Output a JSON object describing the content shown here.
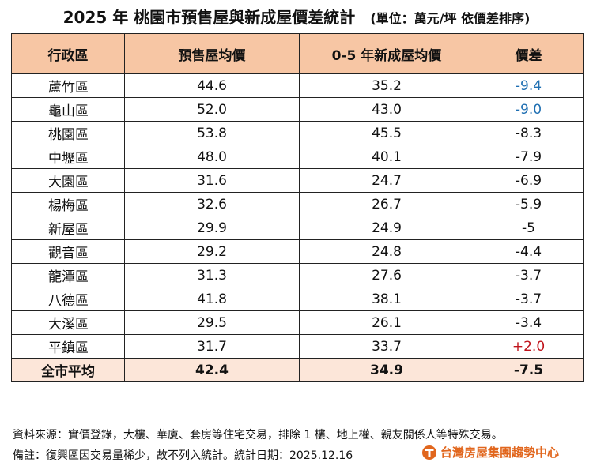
{
  "title": "2025 年 桃園市預售屋與新成屋價差統計",
  "subtitle": "(單位：萬元/坪 依價差排序)",
  "columns": [
    "行政區",
    "預售屋均價",
    "0-5 年新成屋均價",
    "價差"
  ],
  "rows": [
    {
      "district": "蘆竹區",
      "presale": "44.6",
      "new": "35.2",
      "diff": "-9.4",
      "style": "neg-blue"
    },
    {
      "district": "龜山區",
      "presale": "52.0",
      "new": "43.0",
      "diff": "-9.0",
      "style": "neg-blue"
    },
    {
      "district": "桃園區",
      "presale": "53.8",
      "new": "45.5",
      "diff": "-8.3",
      "style": ""
    },
    {
      "district": "中壢區",
      "presale": "48.0",
      "new": "40.1",
      "diff": "-7.9",
      "style": ""
    },
    {
      "district": "大園區",
      "presale": "31.6",
      "new": "24.7",
      "diff": "-6.9",
      "style": ""
    },
    {
      "district": "楊梅區",
      "presale": "32.6",
      "new": "26.7",
      "diff": "-5.9",
      "style": ""
    },
    {
      "district": "新屋區",
      "presale": "29.9",
      "new": "24.9",
      "diff": "-5",
      "style": ""
    },
    {
      "district": "觀音區",
      "presale": "29.2",
      "new": "24.8",
      "diff": "-4.4",
      "style": ""
    },
    {
      "district": "龍潭區",
      "presale": "31.3",
      "new": "27.6",
      "diff": "-3.7",
      "style": ""
    },
    {
      "district": "八德區",
      "presale": "41.8",
      "new": "38.1",
      "diff": "-3.7",
      "style": ""
    },
    {
      "district": "大溪區",
      "presale": "29.5",
      "new": "26.1",
      "diff": "-3.4",
      "style": ""
    },
    {
      "district": "平鎮區",
      "presale": "31.7",
      "new": "33.7",
      "diff": "+2.0",
      "style": "pos-red"
    }
  ],
  "average": {
    "district": "全市平均",
    "presale": "42.4",
    "new": "34.9",
    "diff": "-7.5"
  },
  "footer": {
    "source": "資料來源：實價登錄，大樓、華廈、套房等住宅交易，排除 1 樓、地上權、親友關係人等特殊交易。",
    "note": "備註：復興區因交易量稀少，故不列入統計。統計日期：2025.12.16",
    "brand": "台灣房屋集團趨勢中心"
  },
  "colors": {
    "header_bg": "#f7c6a4",
    "average_bg": "#fce6d9",
    "negative_highlight": "#1f6fb2",
    "positive_highlight": "#c0141c",
    "brand": "#e1661d"
  },
  "chart_data": {
    "type": "table",
    "title": "2025 年 桃園市預售屋與新成屋價差統計",
    "subtitle": "(單位：萬元/坪 依價差排序)",
    "columns": [
      "行政區",
      "預售屋均價",
      "0-5 年新成屋均價",
      "價差"
    ],
    "categories": [
      "蘆竹區",
      "龜山區",
      "桃園區",
      "中壢區",
      "大園區",
      "楊梅區",
      "新屋區",
      "觀音區",
      "龍潭區",
      "八德區",
      "大溪區",
      "平鎮區",
      "全市平均"
    ],
    "series": [
      {
        "name": "預售屋均價",
        "values": [
          44.6,
          52.0,
          53.8,
          48.0,
          31.6,
          32.6,
          29.9,
          29.2,
          31.3,
          41.8,
          29.5,
          31.7,
          42.4
        ]
      },
      {
        "name": "0-5 年新成屋均價",
        "values": [
          35.2,
          43.0,
          45.5,
          40.1,
          24.7,
          26.7,
          24.9,
          24.8,
          27.6,
          38.1,
          26.1,
          33.7,
          34.9
        ]
      },
      {
        "name": "價差",
        "values": [
          -9.4,
          -9.0,
          -8.3,
          -7.9,
          -6.9,
          -5.9,
          -5,
          -4.4,
          -3.7,
          -3.7,
          -3.4,
          2.0,
          -7.5
        ]
      }
    ]
  }
}
